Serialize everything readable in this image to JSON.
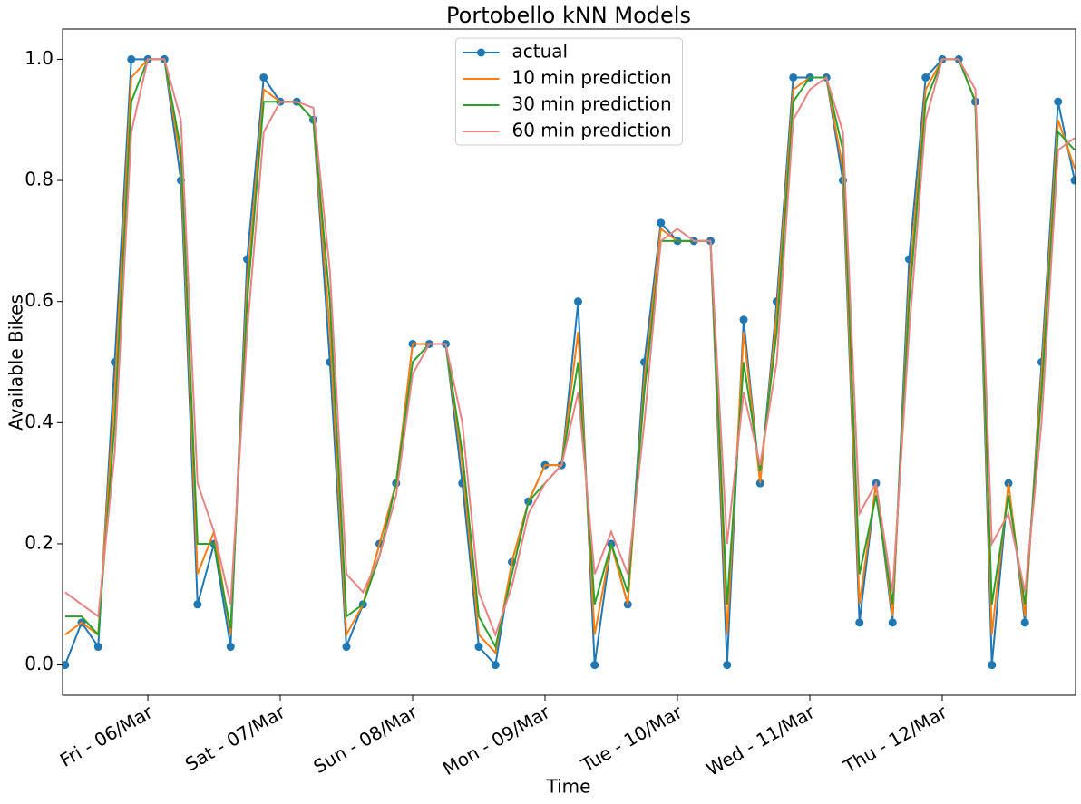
{
  "chart_data": {
    "type": "line",
    "title": "Portobello kNN Models",
    "x_label": "Time",
    "y_label": "Available Bikes",
    "x": [
      5.375,
      5.5,
      5.625,
      5.75,
      5.875,
      6.0,
      6.125,
      6.25,
      6.375,
      6.5,
      6.625,
      6.75,
      6.875,
      7.0,
      7.125,
      7.25,
      7.375,
      7.5,
      7.625,
      7.75,
      7.875,
      8.0,
      8.125,
      8.25,
      8.375,
      8.5,
      8.625,
      8.75,
      8.875,
      9.0,
      9.125,
      9.25,
      9.375,
      9.5,
      9.625,
      9.75,
      9.875,
      10.0,
      10.125,
      10.25,
      10.375,
      10.5,
      10.625,
      10.75,
      10.875,
      11.0,
      11.125,
      11.25,
      11.375,
      11.5,
      11.625,
      11.75,
      11.875,
      12.0,
      12.125,
      12.25,
      12.375,
      12.5,
      12.625,
      12.75,
      12.875,
      13.0
    ],
    "series": [
      {
        "name": "actual",
        "color": "#1f77b4",
        "marker": true,
        "values": [
          0,
          0.07,
          0.03,
          0.5,
          1.0,
          1.0,
          1.0,
          0.8,
          0.1,
          0.2,
          0.03,
          0.67,
          0.97,
          0.93,
          0.93,
          0.9,
          0.5,
          0.03,
          0.1,
          0.2,
          0.3,
          0.53,
          0.53,
          0.53,
          0.3,
          0.03,
          0,
          0.17,
          0.27,
          0.33,
          0.33,
          0.6,
          0,
          0.2,
          0.1,
          0.5,
          0.73,
          0.7,
          0.7,
          0.7,
          0,
          0.57,
          0.3,
          0.6,
          0.97,
          0.97,
          0.97,
          0.8,
          0.07,
          0.3,
          0.07,
          0.67,
          0.97,
          1.0,
          1.0,
          0.93,
          0,
          0.3,
          0.07,
          0.5,
          0.93,
          0.8
        ]
      },
      {
        "name": "10 min prediction",
        "color": "#ff7f0e",
        "marker": false,
        "values": [
          0.05,
          0.07,
          0.05,
          0.45,
          0.97,
          1.0,
          1.0,
          0.83,
          0.15,
          0.22,
          0.05,
          0.63,
          0.95,
          0.93,
          0.93,
          0.9,
          0.55,
          0.05,
          0.1,
          0.2,
          0.3,
          0.53,
          0.53,
          0.53,
          0.33,
          0.05,
          0.02,
          0.17,
          0.27,
          0.33,
          0.33,
          0.55,
          0.05,
          0.2,
          0.1,
          0.47,
          0.72,
          0.7,
          0.7,
          0.7,
          0.05,
          0.55,
          0.3,
          0.58,
          0.95,
          0.97,
          0.97,
          0.82,
          0.1,
          0.3,
          0.08,
          0.63,
          0.95,
          1.0,
          1.0,
          0.93,
          0.05,
          0.3,
          0.08,
          0.48,
          0.9,
          0.82
        ]
      },
      {
        "name": "30 min prediction",
        "color": "#2ca02c",
        "marker": false,
        "values": [
          0.08,
          0.08,
          0.05,
          0.4,
          0.93,
          1.0,
          1.0,
          0.85,
          0.2,
          0.2,
          0.06,
          0.6,
          0.93,
          0.93,
          0.93,
          0.9,
          0.6,
          0.08,
          0.1,
          0.18,
          0.3,
          0.5,
          0.53,
          0.53,
          0.35,
          0.08,
          0.03,
          0.15,
          0.27,
          0.3,
          0.33,
          0.5,
          0.1,
          0.2,
          0.12,
          0.45,
          0.7,
          0.7,
          0.7,
          0.7,
          0.1,
          0.5,
          0.32,
          0.55,
          0.93,
          0.97,
          0.97,
          0.85,
          0.15,
          0.28,
          0.1,
          0.6,
          0.93,
          1.0,
          1.0,
          0.93,
          0.1,
          0.28,
          0.1,
          0.45,
          0.88,
          0.85
        ]
      },
      {
        "name": "60 min prediction",
        "color": "#e88384",
        "marker": false,
        "values": [
          0.12,
          0.1,
          0.08,
          0.35,
          0.88,
          1.0,
          1.0,
          0.9,
          0.3,
          0.22,
          0.1,
          0.55,
          0.88,
          0.93,
          0.93,
          0.92,
          0.65,
          0.15,
          0.12,
          0.18,
          0.28,
          0.48,
          0.53,
          0.53,
          0.4,
          0.12,
          0.05,
          0.13,
          0.25,
          0.3,
          0.33,
          0.45,
          0.15,
          0.22,
          0.15,
          0.4,
          0.7,
          0.72,
          0.7,
          0.7,
          0.2,
          0.45,
          0.33,
          0.5,
          0.9,
          0.95,
          0.97,
          0.88,
          0.25,
          0.3,
          0.12,
          0.55,
          0.9,
          1.0,
          1.0,
          0.95,
          0.2,
          0.25,
          0.12,
          0.4,
          0.85,
          0.87
        ]
      }
    ],
    "xlim": [
      5.356,
      13.007
    ],
    "xticks": [
      {
        "value": 6,
        "label": "Fri - 06/Mar"
      },
      {
        "value": 7,
        "label": "Sat - 07/Mar"
      },
      {
        "value": 8,
        "label": "Sun - 08/Mar"
      },
      {
        "value": 9,
        "label": "Mon - 09/Mar"
      },
      {
        "value": 10,
        "label": "Tue - 10/Mar"
      },
      {
        "value": 11,
        "label": "Wed - 11/Mar"
      },
      {
        "value": 12,
        "label": "Thu - 12/Mar"
      }
    ],
    "ylim": [
      -0.05,
      1.05
    ],
    "yticks": [
      {
        "value": 0,
        "label": "0.0"
      },
      0.2,
      0.4,
      0.6,
      0.8,
      {
        "value": 1,
        "label": "1.0"
      }
    ],
    "legend": "upper center"
  }
}
